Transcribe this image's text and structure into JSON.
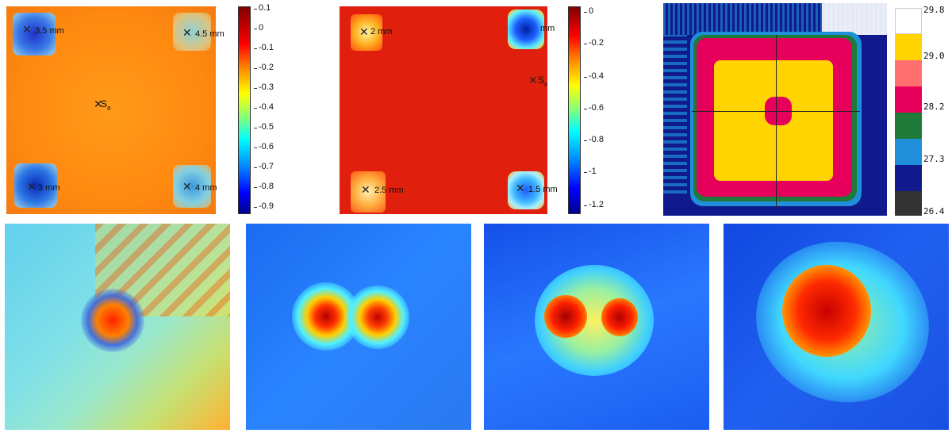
{
  "panel_a": {
    "markers": [
      "3.5  mm",
      "4.5  mm",
      "3  mm",
      "4  mm"
    ],
    "center_label": "S",
    "center_sub": "a",
    "colorbar_ticks": [
      "0.1",
      "0",
      "-0.1",
      "-0.2",
      "-0.3",
      "-0.4",
      "-0.5",
      "-0.6",
      "-0.7",
      "-0.8",
      "-0.9"
    ]
  },
  "panel_b": {
    "markers": [
      "2  mm",
      "mm",
      "2.5  mm",
      "1.5  mm"
    ],
    "center_label": "S",
    "center_sub": "a",
    "colorbar_ticks": [
      "0",
      "-0.2",
      "-0.4",
      "-0.6",
      "-0.8",
      "-1",
      "-1.2"
    ]
  },
  "panel_c": {
    "colorbar_ticks": [
      "29.8",
      "29.0",
      "28.2",
      "27.3",
      "26.4"
    ],
    "palette": [
      "#ffffff",
      "#ffd400",
      "#ff6f6f",
      "#e6005c",
      "#1f7a3a",
      "#1e8fd8",
      "#101a8c",
      "#333333"
    ]
  },
  "colors": {
    "jet_dark_blue": "#00008f",
    "jet_blue": "#0050ff",
    "jet_cyan": "#00ffff",
    "jet_yellow": "#ffff00",
    "jet_red": "#ff0000",
    "jet_dark_red": "#800000"
  }
}
